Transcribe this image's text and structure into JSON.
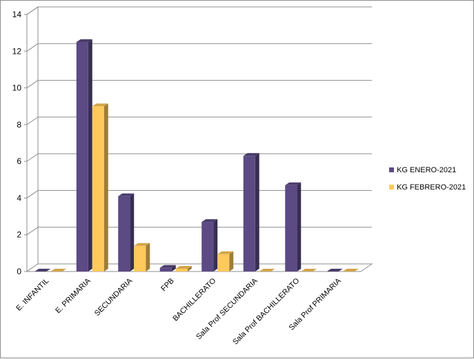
{
  "chart_data": {
    "type": "bar",
    "categories": [
      "E. INFANTIL",
      "E. PRIMARIA",
      "SECUNDARIA",
      "FPB",
      "BACHILLERATO",
      "Sala Prof SECUNDARIA",
      "Sala Prof BACHILLERATO",
      "Sala Prof PRIMARIA"
    ],
    "series": [
      {
        "name": "KG ENERO-2021",
        "color": "#5b4a84",
        "values": [
          0,
          12.5,
          4.1,
          0.2,
          2.7,
          6.3,
          4.7,
          0
        ]
      },
      {
        "name": "KG FEBRERO-2021",
        "color": "#ffc95c",
        "values": [
          0,
          9.0,
          1.4,
          0.15,
          0.95,
          0,
          0,
          0
        ]
      }
    ],
    "yticks": [
      0,
      2,
      4,
      6,
      8,
      10,
      12,
      14
    ],
    "ylim": [
      0,
      14
    ],
    "grid": true,
    "legend_position": "right",
    "title": "",
    "xlabel": "",
    "ylabel": ""
  }
}
